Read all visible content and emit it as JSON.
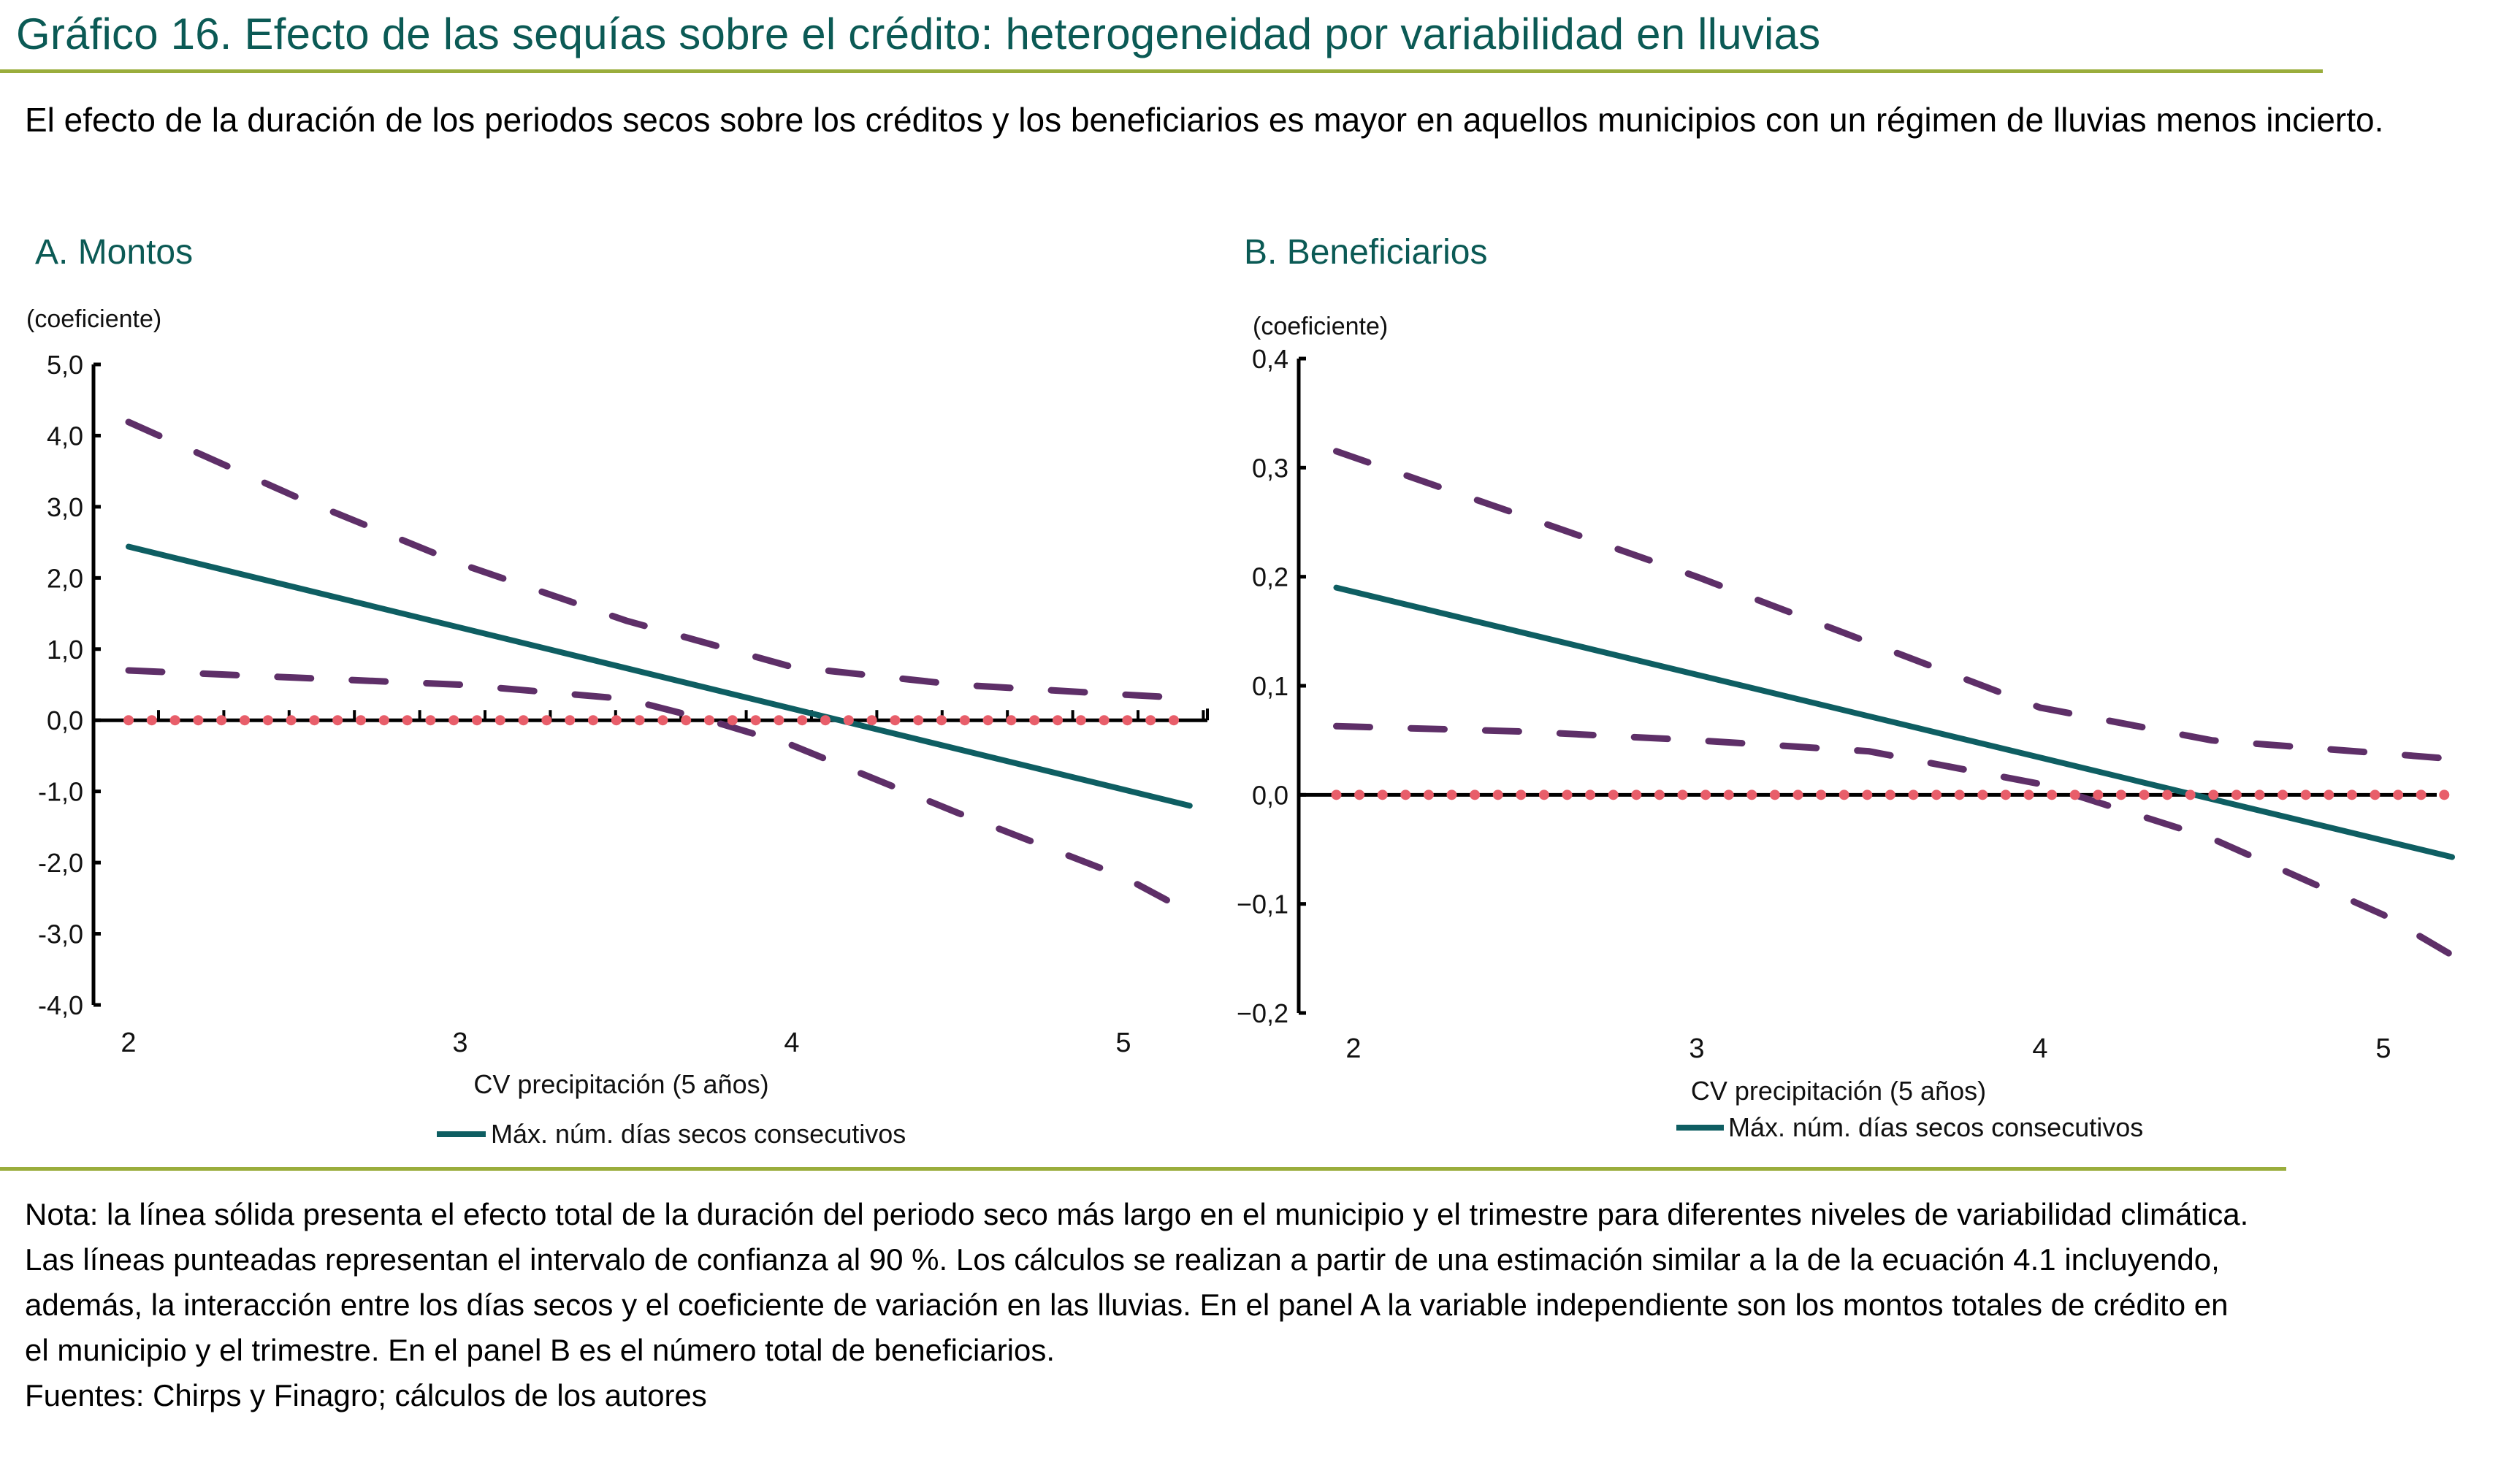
{
  "header": {
    "title": "Gráfico 16. Efecto de las sequías sobre el crédito: heterogeneidad por variabilidad en lluvias",
    "subtitle": "El efecto de la duración de los periodos secos sobre los créditos y los beneficiarios es mayor en aquellos municipios con un régimen de lluvias menos incierto."
  },
  "colors": {
    "title": "#0b5a55",
    "rule": "#9aad3c",
    "solid_line": "#0e5e62",
    "ci_line": "#5e2f68",
    "zero_dots": "#e85e6a",
    "axis": "#000000"
  },
  "chart_data": [
    {
      "type": "line",
      "panel_title": "A. Montos",
      "ylabel": "(coeficiente)",
      "xlabel": "CV precipitación (5 años)",
      "xlim": [
        1.9,
        5.45
      ],
      "ylim": [
        -4.0,
        5.0
      ],
      "yticks": [
        5.0,
        4.0,
        3.0,
        2.0,
        1.0,
        0.0,
        -1.0,
        -2.0,
        -3.0,
        -4.0
      ],
      "ytick_labels": [
        "5,0",
        "4,0",
        "3,0",
        "2,0",
        "1,0",
        "0,0",
        "-1,0",
        "-2,0",
        "-3,0",
        "-4,0"
      ],
      "xticks": [
        2,
        3,
        4,
        5
      ],
      "xtick_labels": [
        "2",
        "3",
        "4",
        "5"
      ],
      "legend": {
        "label": "Máx. núm. días secos consecutivos",
        "position": "bottom-center"
      },
      "grid": false,
      "series": [
        {
          "name": "Máx. núm. días secos consecutivos",
          "style": "solid",
          "x": [
            2.0,
            5.2
          ],
          "y": [
            2.44,
            -1.2
          ]
        },
        {
          "name": "IC 90% superior",
          "style": "dashed",
          "x": [
            2.0,
            2.5,
            3.0,
            3.5,
            4.0,
            4.5,
            5.0,
            5.2
          ],
          "y": [
            4.19,
            3.15,
            2.2,
            1.4,
            0.75,
            0.5,
            0.36,
            0.31
          ]
        },
        {
          "name": "IC 90% inferior",
          "style": "dashed",
          "x": [
            2.0,
            2.5,
            3.0,
            3.5,
            3.75,
            4.0,
            4.5,
            5.0,
            5.2
          ],
          "y": [
            0.7,
            0.6,
            0.5,
            0.3,
            0.0,
            -0.35,
            -1.3,
            -2.2,
            -2.7
          ]
        },
        {
          "name": "Cero",
          "style": "dotted",
          "x": [
            2.0,
            5.2
          ],
          "y": [
            0.0,
            0.0
          ]
        }
      ]
    },
    {
      "type": "line",
      "panel_title": "B. Beneficiarios",
      "ylabel": "(coeficiente)",
      "xlabel": "CV precipitación (5 años)",
      "xlim": [
        1.75,
        5.25
      ],
      "ylim": [
        -0.2,
        0.4
      ],
      "yticks": [
        0.4,
        0.3,
        0.2,
        0.1,
        0.0,
        -0.1,
        -0.2
      ],
      "ytick_labels": [
        "0,4",
        "0,3",
        "0,2",
        "0,1",
        "0,0",
        "−0,1",
        "−0,2"
      ],
      "xticks": [
        2,
        3,
        4,
        5
      ],
      "xtick_labels": [
        "2",
        "3",
        "4",
        "5"
      ],
      "legend": {
        "label": "Máx. núm. días secos consecutivos",
        "position": "bottom-center"
      },
      "grid": false,
      "series": [
        {
          "name": "Máx. núm. días secos consecutivos",
          "style": "solid",
          "x": [
            1.95,
            5.2
          ],
          "y": [
            0.19,
            -0.057
          ]
        },
        {
          "name": "IC 90% superior",
          "style": "dashed",
          "x": [
            1.95,
            2.5,
            3.0,
            3.5,
            4.0,
            4.5,
            5.0,
            5.2
          ],
          "y": [
            0.315,
            0.255,
            0.2,
            0.14,
            0.08,
            0.05,
            0.038,
            0.033
          ]
        },
        {
          "name": "IC 90% inferior",
          "style": "dashed",
          "x": [
            1.95,
            2.5,
            3.0,
            3.5,
            4.0,
            4.5,
            5.0,
            5.2
          ],
          "y": [
            0.063,
            0.058,
            0.05,
            0.04,
            0.01,
            -0.04,
            -0.11,
            -0.147
          ]
        },
        {
          "name": "Cero",
          "style": "dotted",
          "x": [
            1.95,
            5.2
          ],
          "y": [
            0.0,
            0.0
          ]
        }
      ]
    }
  ],
  "footer": {
    "note_lines": [
      "Nota: la línea sólida presenta el efecto total de la duración del periodo seco más largo en el municipio y el trimestre para diferentes niveles de variabilidad climática.",
      "Las líneas punteadas representan el intervalo de confianza al 90 %. Los cálculos se realizan a partir de una estimación  similar a la de la ecuación 4.1 incluyendo,",
      "además, la interacción entre los días secos y el coeficiente de variación en las lluvias. En el panel A la  variable independiente son los montos totales de crédito en",
      "el municipio y el trimestre. En el panel B es el número total de beneficiarios."
    ],
    "sources": "Fuentes: Chirps y Finagro; cálculos de los autores"
  }
}
